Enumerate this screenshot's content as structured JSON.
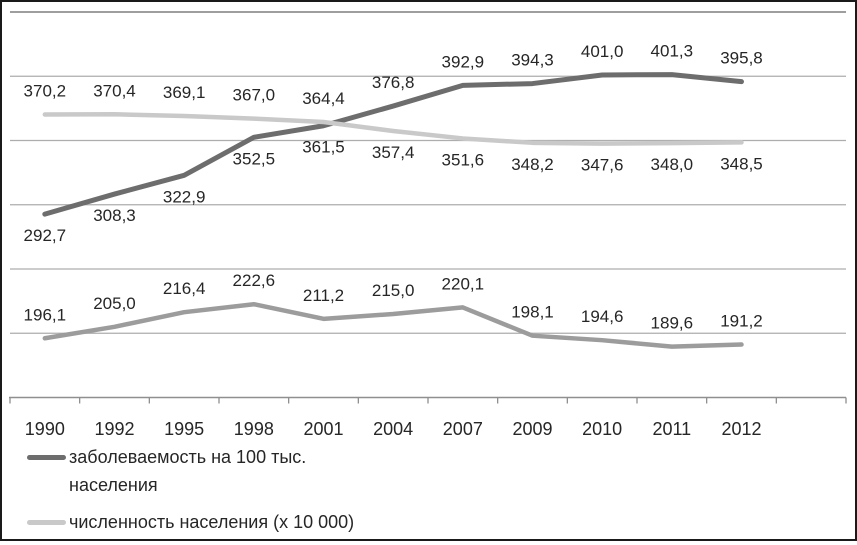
{
  "chart_data": {
    "type": "line",
    "categories": [
      "1990",
      "1992",
      "1995",
      "1998",
      "2001",
      "2004",
      "2007",
      "2009",
      "2010",
      "2011",
      "2012"
    ],
    "series": [
      {
        "name": "заболеваемость на 100 тыс. населения",
        "color": "#6d6d6d",
        "values": [
          292.7,
          308.3,
          322.9,
          352.5,
          361.5,
          376.8,
          392.9,
          394.3,
          401.0,
          401.3,
          395.8
        ],
        "label_positions": [
          "below",
          "below",
          "below",
          "below",
          "below",
          "above",
          "above",
          "above",
          "above",
          "above",
          "above"
        ]
      },
      {
        "name": "численность населения (x 10 000)",
        "color": "#c9c9c9",
        "values": [
          370.2,
          370.4,
          369.1,
          367.0,
          364.4,
          357.4,
          351.6,
          348.2,
          347.6,
          348.0,
          348.5
        ],
        "label_positions": [
          "above",
          "above",
          "above",
          "above",
          "above",
          "below",
          "below",
          "below",
          "below",
          "below",
          "below"
        ]
      },
      {
        "name": "",
        "color": "#9c9c9c",
        "values": [
          196.1,
          205.0,
          216.4,
          222.6,
          211.2,
          215.0,
          220.1,
          198.1,
          194.6,
          189.6,
          191.2
        ],
        "label_positions": [
          "above",
          "above",
          "above",
          "above",
          "above",
          "above",
          "above",
          "above",
          "above",
          "above",
          "above"
        ]
      }
    ],
    "ylim": [
      150,
      450
    ],
    "ytick_step": 50,
    "grid": true,
    "y_axis_labels_visible": false,
    "legend_position": "bottom-left",
    "decimal_separator": ","
  },
  "legend": {
    "items": [
      {
        "label": "заболеваемость на 100 тыс. населения",
        "color": "#6d6d6d"
      },
      {
        "label": "численность населения (x 10 000)",
        "color": "#c9c9c9"
      }
    ]
  },
  "colors": {
    "grid": "#adadad",
    "grid_top": "#909090",
    "axis": "#8f8f8f",
    "label_text": "#262626",
    "background": "#ffffff",
    "border": "#1a1a1a"
  }
}
